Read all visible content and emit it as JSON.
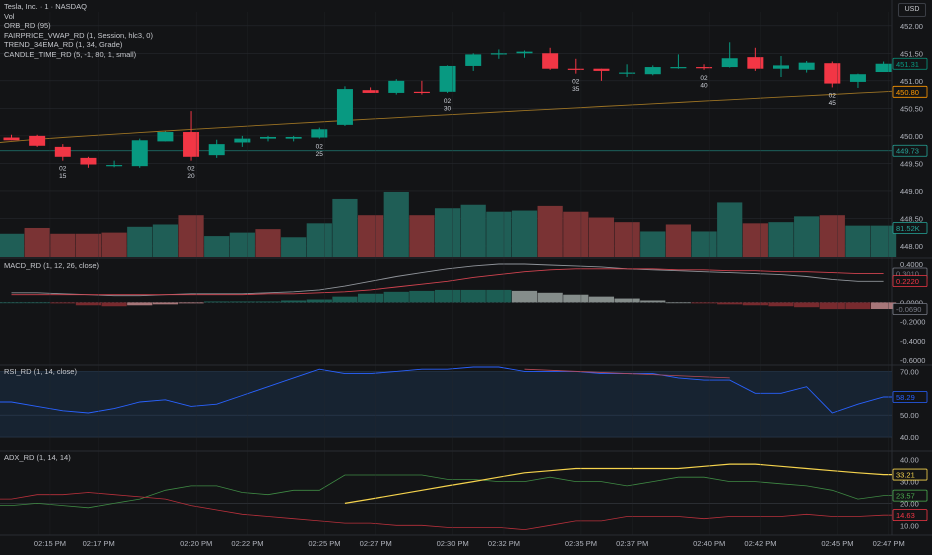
{
  "header": {
    "symbol_line": "Tesla, Inc. · 1 · NASDAQ",
    "currency": "USD",
    "overlays": [
      "Vol",
      "ORB_RD (95)",
      "FAIRPRICE_VWAP_RD (1, Session, hlc3, 0)",
      "TREND_34EMA_RD (1, 34, Grade)",
      "CANDLE_TIME_RD (5, -1, 80, 1, small)"
    ]
  },
  "colors": {
    "background": "#131416",
    "up": "#089981",
    "down": "#f23645",
    "vol_up": "#1f5e56",
    "vol_down": "#7a3334",
    "grid": "#26282d",
    "vwap": "#ff9800",
    "orb": "#26a69a",
    "rsi_line": "#2962ff",
    "adx_line": "#f5d34d",
    "plus_di": "#4caf50",
    "minus_di": "#f23645"
  },
  "chart_data": [
    {
      "type": "candlestick",
      "title": "Tesla, Inc. · 1 · NASDAQ",
      "ylim": [
        447.8,
        452.25
      ],
      "y_ticks": [
        "452.00",
        "451.50",
        "451.00",
        "450.50",
        "450.00",
        "449.50",
        "449.00",
        "448.50",
        "448.00"
      ],
      "candles": [
        {
          "o": 449.97,
          "h": 450.02,
          "l": 449.92,
          "c": 449.92
        },
        {
          "o": 450.0,
          "h": 450.02,
          "l": 449.8,
          "c": 449.82
        },
        {
          "o": 449.8,
          "h": 449.85,
          "l": 449.55,
          "c": 449.62
        },
        {
          "o": 449.6,
          "h": 449.62,
          "l": 449.42,
          "c": 449.48
        },
        {
          "o": 449.47,
          "h": 449.55,
          "l": 449.43,
          "c": 449.47
        },
        {
          "o": 449.45,
          "h": 449.95,
          "l": 449.42,
          "c": 449.92
        },
        {
          "o": 449.9,
          "h": 450.08,
          "l": 449.9,
          "c": 450.07
        },
        {
          "o": 450.07,
          "h": 450.45,
          "l": 449.55,
          "c": 449.62
        },
        {
          "o": 449.65,
          "h": 449.93,
          "l": 449.6,
          "c": 449.85
        },
        {
          "o": 449.88,
          "h": 450.0,
          "l": 449.8,
          "c": 449.95
        },
        {
          "o": 449.95,
          "h": 450.0,
          "l": 449.9,
          "c": 449.98
        },
        {
          "o": 449.95,
          "h": 450.0,
          "l": 449.9,
          "c": 449.98
        },
        {
          "o": 449.97,
          "h": 450.15,
          "l": 449.95,
          "c": 450.12
        },
        {
          "o": 450.2,
          "h": 450.9,
          "l": 450.18,
          "c": 450.85
        },
        {
          "o": 450.83,
          "h": 450.88,
          "l": 450.78,
          "c": 450.78
        },
        {
          "o": 450.78,
          "h": 451.03,
          "l": 450.75,
          "c": 451.0
        },
        {
          "o": 450.8,
          "h": 451.0,
          "l": 450.75,
          "c": 450.78
        },
        {
          "o": 450.8,
          "h": 451.28,
          "l": 450.78,
          "c": 451.27
        },
        {
          "o": 451.27,
          "h": 451.5,
          "l": 451.18,
          "c": 451.48
        },
        {
          "o": 451.48,
          "h": 451.57,
          "l": 451.4,
          "c": 451.5
        },
        {
          "o": 451.5,
          "h": 451.55,
          "l": 451.42,
          "c": 451.53
        },
        {
          "o": 451.5,
          "h": 451.6,
          "l": 451.2,
          "c": 451.22
        },
        {
          "o": 451.22,
          "h": 451.4,
          "l": 451.13,
          "c": 451.2
        },
        {
          "o": 451.22,
          "h": 451.22,
          "l": 451.0,
          "c": 451.18
        },
        {
          "o": 451.15,
          "h": 451.3,
          "l": 451.07,
          "c": 451.15
        },
        {
          "o": 451.12,
          "h": 451.28,
          "l": 451.1,
          "c": 451.25
        },
        {
          "o": 451.25,
          "h": 451.48,
          "l": 451.22,
          "c": 451.25
        },
        {
          "o": 451.25,
          "h": 451.3,
          "l": 451.2,
          "c": 451.23
        },
        {
          "o": 451.25,
          "h": 451.7,
          "l": 451.24,
          "c": 451.41
        },
        {
          "o": 451.43,
          "h": 451.6,
          "l": 451.18,
          "c": 451.22
        },
        {
          "o": 451.22,
          "h": 451.45,
          "l": 451.07,
          "c": 451.28
        },
        {
          "o": 451.2,
          "h": 451.36,
          "l": 451.15,
          "c": 451.33
        },
        {
          "o": 451.32,
          "h": 451.35,
          "l": 450.88,
          "c": 450.95
        },
        {
          "o": 450.98,
          "h": 451.13,
          "l": 450.87,
          "c": 451.12
        },
        {
          "o": 451.16,
          "h": 451.35,
          "l": 451.16,
          "c": 451.31
        }
      ],
      "vwap": {
        "start": 449.9,
        "end": 450.8
      },
      "orb_level": 449.73,
      "time_labels": [
        {
          "bar": 2,
          "l1": "02",
          "l2": "15"
        },
        {
          "bar": 7,
          "l1": "02",
          "l2": "20"
        },
        {
          "bar": 12,
          "l1": "02",
          "l2": "25"
        },
        {
          "bar": 17,
          "l1": "02",
          "l2": "30"
        },
        {
          "bar": 22,
          "l1": "02",
          "l2": "35"
        },
        {
          "bar": 27,
          "l1": "02",
          "l2": "40"
        },
        {
          "bar": 32,
          "l1": "02",
          "l2": "45"
        }
      ],
      "price_badges": [
        {
          "value": "451.31",
          "color": "#089981",
          "y": 451.31
        },
        {
          "value": "450.80",
          "color": "#ff9800",
          "y": 450.8
        },
        {
          "value": "449.73",
          "color": "#26a69a",
          "y": 449.73
        }
      ]
    },
    {
      "type": "bar",
      "title": "Vol",
      "values": [
        1.0,
        1.25,
        1.0,
        1.0,
        1.05,
        1.3,
        1.4,
        1.8,
        0.9,
        1.05,
        1.2,
        0.85,
        1.45,
        2.5,
        1.8,
        2.8,
        1.8,
        2.1,
        2.25,
        1.95,
        2.0,
        2.2,
        1.95,
        1.7,
        1.5,
        1.1,
        1.4,
        1.1,
        2.35,
        1.45,
        1.5,
        1.75,
        1.8,
        1.35,
        1.35
      ],
      "direction": [
        "u",
        "d",
        "d",
        "d",
        "d",
        "u",
        "u",
        "d",
        "u",
        "u",
        "d",
        "u",
        "u",
        "u",
        "d",
        "u",
        "d",
        "u",
        "u",
        "u",
        "u",
        "d",
        "d",
        "d",
        "d",
        "u",
        "d",
        "u",
        "u",
        "d",
        "u",
        "u",
        "d",
        "u",
        "u"
      ],
      "last_value": "81.52K"
    },
    {
      "type": "line",
      "title": "MACD_RD (1, 12, 26, close)",
      "ylim": [
        -0.6,
        0.4
      ],
      "y_ticks": [
        "0.4000",
        "0.2000",
        "0.0000",
        "-0.2000",
        "-0.4000",
        "-0.6000"
      ],
      "macd": [
        0.1,
        0.1,
        0.09,
        0.08,
        0.07,
        0.07,
        0.08,
        0.09,
        0.09,
        0.09,
        0.1,
        0.11,
        0.13,
        0.17,
        0.22,
        0.27,
        0.31,
        0.35,
        0.38,
        0.4,
        0.4,
        0.39,
        0.38,
        0.37,
        0.35,
        0.34,
        0.33,
        0.32,
        0.31,
        0.3,
        0.29,
        0.27,
        0.24,
        0.22,
        0.22
      ],
      "signal": [
        0.08,
        0.08,
        0.08,
        0.08,
        0.08,
        0.08,
        0.08,
        0.08,
        0.08,
        0.08,
        0.09,
        0.09,
        0.1,
        0.11,
        0.13,
        0.16,
        0.19,
        0.22,
        0.26,
        0.29,
        0.32,
        0.34,
        0.35,
        0.35,
        0.35,
        0.35,
        0.34,
        0.34,
        0.33,
        0.33,
        0.32,
        0.32,
        0.31,
        0.3,
        0.3
      ],
      "histogram": [
        0.0,
        0.0,
        -0.01,
        -0.03,
        -0.04,
        -0.03,
        -0.02,
        -0.01,
        0.01,
        0.01,
        0.01,
        0.02,
        0.03,
        0.06,
        0.09,
        0.11,
        0.12,
        0.13,
        0.13,
        0.13,
        0.12,
        0.1,
        0.08,
        0.06,
        0.04,
        0.02,
        0.0,
        -0.01,
        -0.02,
        -0.03,
        -0.04,
        -0.05,
        -0.07,
        -0.07,
        -0.069
      ],
      "badges": [
        {
          "value": "0.3010",
          "color": "#787b86",
          "y": 0.301
        },
        {
          "value": "0.2220",
          "color": "#f23645",
          "y": 0.222
        },
        {
          "value": "-0.0690",
          "color": "#787b86",
          "y": -0.069
        }
      ]
    },
    {
      "type": "line",
      "title": "RSI_RD (1, 14, close)",
      "ylim": [
        35,
        72
      ],
      "y_ticks": [
        "70.00",
        "60.00",
        "50.00",
        "40.00",
        "30.00"
      ],
      "band": [
        40,
        70
      ],
      "values": [
        56,
        54,
        52,
        51,
        53,
        56,
        57,
        54,
        55,
        59,
        63,
        67,
        71,
        69,
        69,
        70,
        71,
        71,
        72,
        72,
        70,
        70,
        70,
        69,
        69,
        69,
        67,
        66,
        66,
        60,
        60,
        63,
        51,
        55,
        58.29
      ],
      "divergence": {
        "from": [
          20,
          71
        ],
        "to": [
          28,
          67
        ]
      },
      "last_value": "58.29"
    },
    {
      "type": "line",
      "title": "ADX_RD (1, 14, 14)",
      "ylim": [
        6,
        44
      ],
      "y_ticks": [
        "40.00",
        "30.00",
        "20.00",
        "10.00"
      ],
      "adx": [
        null,
        null,
        null,
        null,
        null,
        null,
        null,
        null,
        null,
        null,
        null,
        null,
        null,
        20,
        22,
        24,
        26,
        28,
        30,
        32,
        34,
        35,
        36,
        36,
        36,
        36,
        36,
        37,
        38,
        38,
        37,
        36,
        35,
        34,
        33.21
      ],
      "plus_di": [
        19,
        20,
        19,
        18,
        20,
        22,
        26,
        28,
        28,
        25,
        24,
        26,
        26,
        33,
        33,
        33,
        33,
        31,
        31,
        30,
        30,
        32,
        30,
        30,
        28,
        30,
        32,
        32,
        30,
        30,
        29,
        28,
        26,
        22,
        23.57
      ],
      "minus_di": [
        22,
        24,
        24,
        25,
        24,
        23,
        22,
        19,
        17,
        15,
        14,
        13,
        12,
        11,
        11,
        10,
        10,
        9,
        9,
        9,
        8,
        10,
        12,
        12,
        14,
        14,
        14,
        13,
        14,
        14,
        14,
        15,
        14,
        14,
        14.63
      ],
      "badges": [
        {
          "value": "33.21",
          "color": "#f5d34d",
          "y": 33.21
        },
        {
          "value": "23.57",
          "color": "#4caf50",
          "y": 23.57
        },
        {
          "value": "14.63",
          "color": "#f23645",
          "y": 14.63
        }
      ]
    }
  ],
  "x_axis": {
    "labels": [
      {
        "bar": 1.5,
        "text": "02:15 PM"
      },
      {
        "bar": 3.4,
        "text": "02:17 PM"
      },
      {
        "bar": 7.2,
        "text": "02:20 PM"
      },
      {
        "bar": 9.2,
        "text": "02:22 PM"
      },
      {
        "bar": 12.2,
        "text": "02:25 PM"
      },
      {
        "bar": 14.2,
        "text": "02:27 PM"
      },
      {
        "bar": 17.2,
        "text": "02:30 PM"
      },
      {
        "bar": 19.2,
        "text": "02:32 PM"
      },
      {
        "bar": 22.2,
        "text": "02:35 PM"
      },
      {
        "bar": 24.2,
        "text": "02:37 PM"
      },
      {
        "bar": 27.2,
        "text": "02:40 PM"
      },
      {
        "bar": 29.2,
        "text": "02:42 PM"
      },
      {
        "bar": 32.2,
        "text": "02:45 PM"
      },
      {
        "bar": 34.2,
        "text": "02:47 PM"
      }
    ]
  }
}
